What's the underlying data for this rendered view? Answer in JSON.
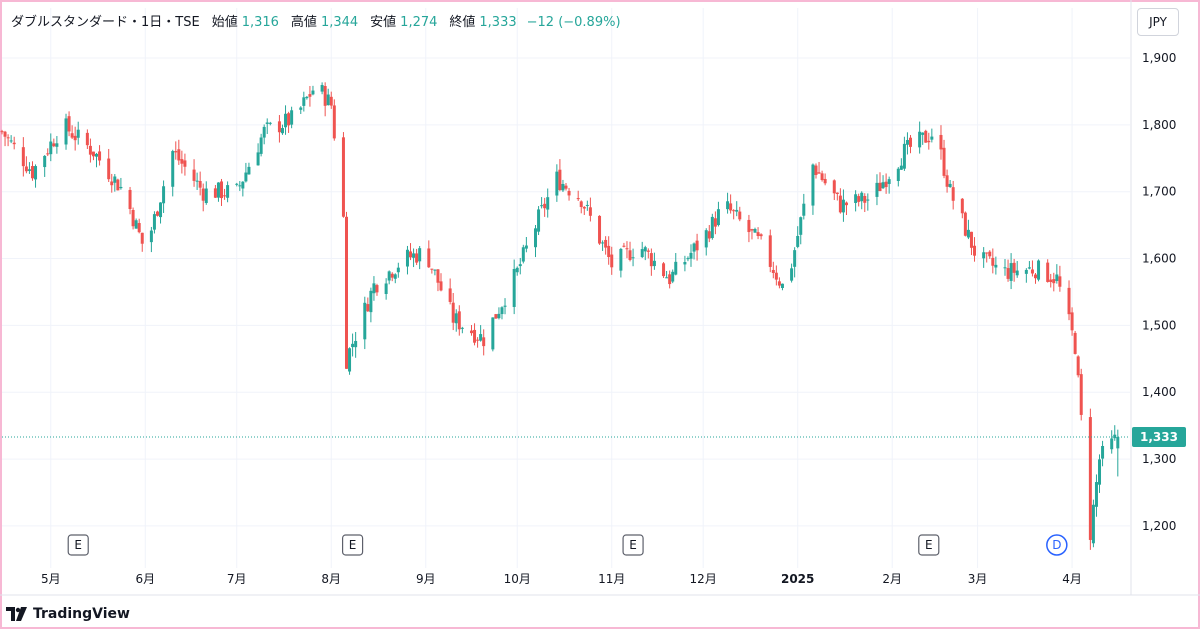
{
  "legend": {
    "symbol": "ダブルスタンダード・1日・TSE",
    "open_label": "始値",
    "open": "1,316",
    "high_label": "高値",
    "high": "1,344",
    "low_label": "安値",
    "low": "1,274",
    "close_label": "終値",
    "close": "1,333",
    "change": "−12 (−0.89%)"
  },
  "currency_button": "JPY",
  "branding": "TradingView",
  "colors": {
    "up": "#26a69a",
    "down": "#ef5350",
    "grid": "#f0f3fa",
    "frame": "#f7b8d4",
    "price_line": "#26a69a",
    "event_d": "#2962ff"
  },
  "chart_data": {
    "type": "candlestick",
    "y_ticks": [
      1200,
      1300,
      1400,
      1500,
      1600,
      1700,
      1800,
      1900
    ],
    "y_tick_labels": [
      "1,200",
      "1,300",
      "1,400",
      "1,500",
      "1,600",
      "1,700",
      "1,800",
      "1,900"
    ],
    "ylim": [
      1140,
      1930
    ],
    "x_start": "2024-04-15",
    "x_end": "2025-04-20",
    "x_ticks": [
      {
        "label": "5月",
        "date": "2024-05-01"
      },
      {
        "label": "6月",
        "date": "2024-06-01"
      },
      {
        "label": "7月",
        "date": "2024-07-01"
      },
      {
        "label": "8月",
        "date": "2024-08-01"
      },
      {
        "label": "9月",
        "date": "2024-09-01"
      },
      {
        "label": "10月",
        "date": "2024-10-01"
      },
      {
        "label": "11月",
        "date": "2024-11-01"
      },
      {
        "label": "12月",
        "date": "2024-12-01"
      },
      {
        "label": "2025",
        "date": "2025-01-01",
        "bold": true
      },
      {
        "label": "2月",
        "date": "2025-02-01"
      },
      {
        "label": "3月",
        "date": "2025-03-01"
      },
      {
        "label": "4月",
        "date": "2025-04-01"
      }
    ],
    "events": [
      {
        "label": "E",
        "date": "2024-05-10"
      },
      {
        "label": "E",
        "date": "2024-08-08"
      },
      {
        "label": "E",
        "date": "2024-11-08"
      },
      {
        "label": "E",
        "date": "2025-02-13"
      },
      {
        "label": "D",
        "date": "2025-03-27"
      }
    ],
    "last_price": 1333,
    "last_price_label": "1,333",
    "anchors": [
      [
        "2024-04-15",
        1790
      ],
      [
        "2024-04-25",
        1730
      ],
      [
        "2024-05-05",
        1800
      ],
      [
        "2024-05-15",
        1760
      ],
      [
        "2024-05-25",
        1700
      ],
      [
        "2024-06-01",
        1610
      ],
      [
        "2024-06-10",
        1760
      ],
      [
        "2024-06-20",
        1700
      ],
      [
        "2024-07-01",
        1700
      ],
      [
        "2024-07-10",
        1790
      ],
      [
        "2024-07-20",
        1810
      ],
      [
        "2024-07-27",
        1860
      ],
      [
        "2024-08-01",
        1830
      ],
      [
        "2024-08-05",
        1660
      ],
      [
        "2024-08-06",
        1450
      ],
      [
        "2024-08-15",
        1560
      ],
      [
        "2024-08-25",
        1600
      ],
      [
        "2024-09-01",
        1610
      ],
      [
        "2024-09-10",
        1510
      ],
      [
        "2024-09-20",
        1480
      ],
      [
        "2024-10-01",
        1580
      ],
      [
        "2024-10-08",
        1660
      ],
      [
        "2024-10-14",
        1720
      ],
      [
        "2024-10-22",
        1690
      ],
      [
        "2024-11-01",
        1590
      ],
      [
        "2024-11-10",
        1620
      ],
      [
        "2024-11-20",
        1570
      ],
      [
        "2024-12-01",
        1630
      ],
      [
        "2024-12-08",
        1680
      ],
      [
        "2024-12-20",
        1620
      ],
      [
        "2024-12-28",
        1550
      ],
      [
        "2025-01-06",
        1740
      ],
      [
        "2025-01-15",
        1680
      ],
      [
        "2025-01-25",
        1690
      ],
      [
        "2025-02-05",
        1760
      ],
      [
        "2025-02-15",
        1790
      ],
      [
        "2025-02-20",
        1700
      ],
      [
        "2025-03-01",
        1600
      ],
      [
        "2025-03-10",
        1580
      ],
      [
        "2025-03-20",
        1585
      ],
      [
        "2025-03-27",
        1570
      ],
      [
        "2025-04-02",
        1470
      ],
      [
        "2025-04-07",
        1190
      ],
      [
        "2025-04-10",
        1300
      ],
      [
        "2025-04-16",
        1333
      ]
    ]
  }
}
